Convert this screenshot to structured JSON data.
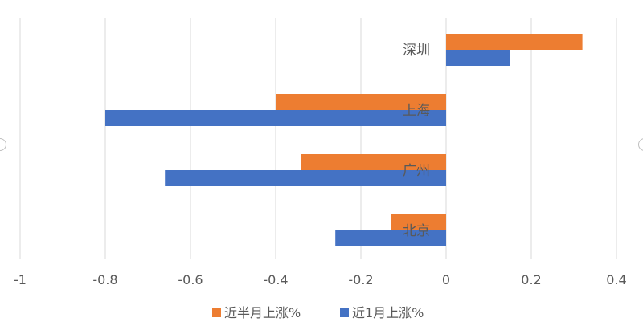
{
  "chart_data": {
    "type": "bar",
    "orientation": "horizontal",
    "categories": [
      "深圳",
      "上海",
      "广州",
      "北京"
    ],
    "series": [
      {
        "name": "近半月上涨%",
        "color": "#ed7d31",
        "values": [
          0.32,
          -0.4,
          -0.34,
          -0.13
        ]
      },
      {
        "name": "近1月上涨%",
        "color": "#4472c4",
        "values": [
          0.15,
          -0.8,
          -0.66,
          -0.26
        ]
      }
    ],
    "xlim": [
      -1,
      0.4
    ],
    "xticks": [
      "-1",
      "-0.8",
      "-0.6",
      "-0.4",
      "-0.2",
      "0",
      "0.2",
      "0.4"
    ],
    "xtick_values": [
      -1,
      -0.8,
      -0.6,
      -0.4,
      -0.2,
      0,
      0.2,
      0.4
    ],
    "grid": true,
    "legend_position": "bottom"
  }
}
